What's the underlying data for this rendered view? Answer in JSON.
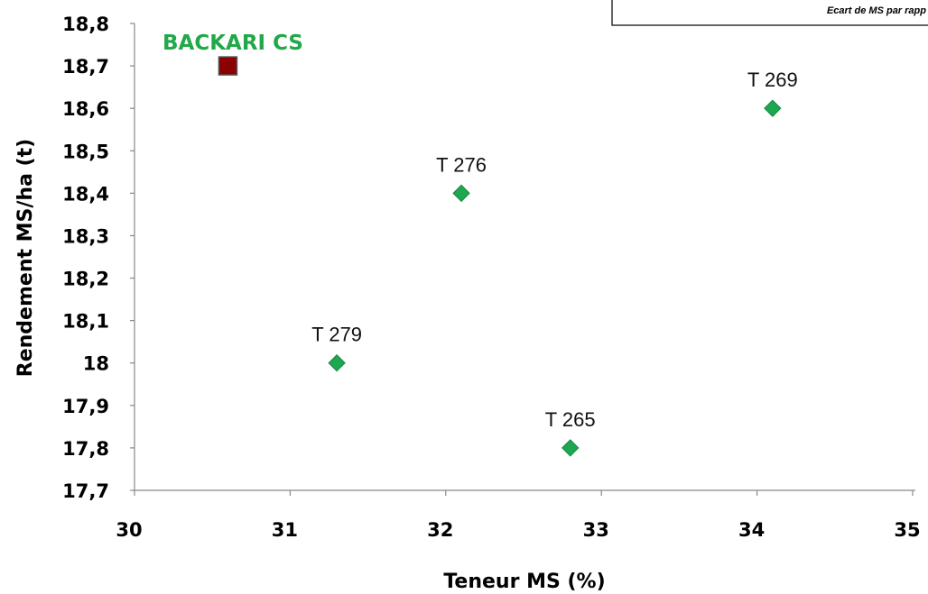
{
  "chart_data": {
    "type": "scatter",
    "xlabel": "Teneur MS (%)",
    "ylabel": "Rendement MS/ha (t)",
    "xlim": [
      30,
      35
    ],
    "ylim": [
      17.7,
      18.8
    ],
    "x_ticks": [
      "30",
      "31",
      "32",
      "33",
      "34",
      "35"
    ],
    "y_ticks": [
      "17,7",
      "17,8",
      "17,9",
      "18",
      "18,1",
      "18,2",
      "18,3",
      "18,4",
      "18,5",
      "18,6",
      "18,7",
      "18,8"
    ],
    "grid": false,
    "reference": {
      "label": "BACKARI CS",
      "x": 30.6,
      "y": 18.7,
      "color": "#8B0000",
      "label_color": "#22A84A"
    },
    "points": [
      {
        "label": "T 279",
        "x": 31.3,
        "y": 18.0
      },
      {
        "label": "T 276",
        "x": 32.1,
        "y": 18.4
      },
      {
        "label": "T 265",
        "x": 32.8,
        "y": 17.8
      },
      {
        "label": "T 269",
        "x": 34.1,
        "y": 18.6
      }
    ],
    "point_color": "#1DA750",
    "note": "Ecart de MS par rapp"
  }
}
